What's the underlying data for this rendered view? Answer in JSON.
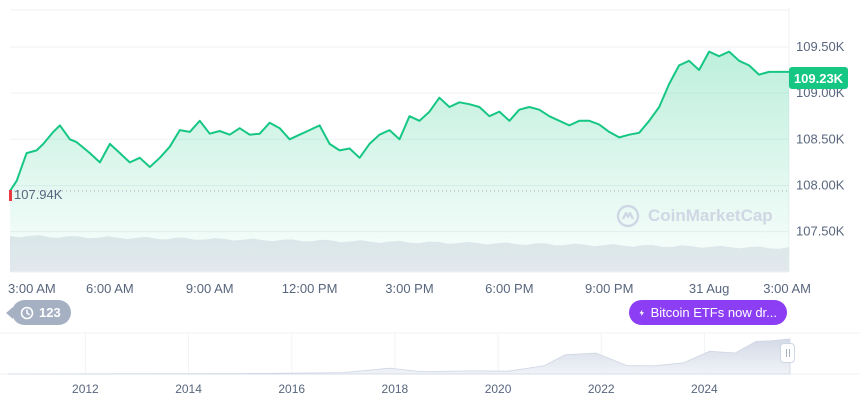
{
  "chart_data": [
    {
      "type": "area",
      "ylim": [
        107200,
        109900
      ],
      "y_ticks": [
        "109.50K",
        "109.00K",
        "108.50K",
        "108.00K",
        "107.50K"
      ],
      "y_tick_values": [
        109500,
        109000,
        108500,
        108000,
        107500
      ],
      "x_ticks": [
        "3:00 AM",
        "6:00 AM",
        "9:00 AM",
        "12:00 PM",
        "3:00 PM",
        "6:00 PM",
        "9:00 PM",
        "31 Aug",
        "3:00 AM"
      ],
      "x_tick_hours": [
        0,
        3,
        6,
        9,
        12,
        15,
        18,
        21,
        24
      ],
      "x_range_hours": [
        0,
        23.4
      ],
      "series": [
        {
          "x_hours": [
            0,
            0.2,
            0.5,
            0.8,
            1.0,
            1.3,
            1.5,
            1.8,
            2.0,
            2.4,
            2.7,
            3.0,
            3.3,
            3.6,
            3.9,
            4.2,
            4.5,
            4.8,
            5.1,
            5.4,
            5.7,
            6.0,
            6.3,
            6.6,
            6.9,
            7.2,
            7.5,
            7.8,
            8.1,
            8.4,
            8.7,
            9.0,
            9.3,
            9.6,
            9.9,
            10.2,
            10.5,
            10.8,
            11.1,
            11.4,
            11.7,
            12.0,
            12.3,
            12.6,
            12.9,
            13.2,
            13.5,
            13.8,
            14.1,
            14.4,
            14.7,
            15.0,
            15.3,
            15.6,
            15.9,
            16.2,
            16.5,
            16.8,
            17.1,
            17.4,
            17.7,
            18.0,
            18.3,
            18.6,
            18.9,
            19.2,
            19.5,
            19.8,
            20.1,
            20.4,
            20.7,
            21.0,
            21.3,
            21.6,
            21.9,
            22.2,
            22.5,
            22.8,
            23.1,
            23.4
          ],
          "values": [
            107940,
            108050,
            108350,
            108380,
            108450,
            108580,
            108650,
            108500,
            108470,
            108350,
            108250,
            108450,
            108350,
            108250,
            108300,
            108200,
            108300,
            108420,
            108600,
            108580,
            108700,
            108560,
            108590,
            108550,
            108620,
            108550,
            108560,
            108680,
            108620,
            108500,
            108550,
            108600,
            108650,
            108450,
            108380,
            108400,
            108300,
            108450,
            108550,
            108600,
            108500,
            108750,
            108700,
            108800,
            108950,
            108850,
            108900,
            108880,
            108850,
            108750,
            108800,
            108700,
            108820,
            108850,
            108820,
            108750,
            108700,
            108650,
            108700,
            108700,
            108660,
            108580,
            108520,
            108550,
            108570,
            108700,
            108850,
            109100,
            109300,
            109350,
            109250,
            109450,
            109400,
            109450,
            109350,
            109300,
            109200,
            109230,
            109230,
            109230
          ]
        }
      ],
      "start_value_label": "107.94K",
      "current_price_label": "109.23K",
      "volume_present": true
    },
    {
      "type": "area",
      "x_ticks": [
        "2012",
        "2014",
        "2016",
        "2018",
        "2020",
        "2022",
        "2024"
      ],
      "x_tick_years": [
        2012,
        2014,
        2016,
        2018,
        2020,
        2022,
        2024
      ],
      "x_range_years": [
        2010.5,
        2025.66
      ],
      "series": [
        {
          "x_years": [
            2010.5,
            2013,
            2015,
            2017,
            2017.9,
            2018.5,
            2019.5,
            2020.2,
            2020.9,
            2021.3,
            2021.9,
            2022.5,
            2023,
            2023.6,
            2024.1,
            2024.6,
            2025.0,
            2025.3,
            2025.66
          ],
          "values": [
            0,
            0.005,
            0.01,
            0.04,
            0.17,
            0.07,
            0.09,
            0.08,
            0.24,
            0.55,
            0.6,
            0.24,
            0.23,
            0.32,
            0.65,
            0.6,
            0.93,
            0.95,
            1.0
          ]
        }
      ]
    }
  ],
  "badge": {
    "icon": "history-icon",
    "count": "123"
  },
  "news": {
    "icon": "lightning-icon",
    "text": "Bitcoin ETFs now dr..."
  },
  "watermark": {
    "text": "CoinMarketCap"
  },
  "colors": {
    "line": "#16c784",
    "red": "#ea3943",
    "news": "#8c3ef5",
    "badge": "#a6b0c3"
  }
}
